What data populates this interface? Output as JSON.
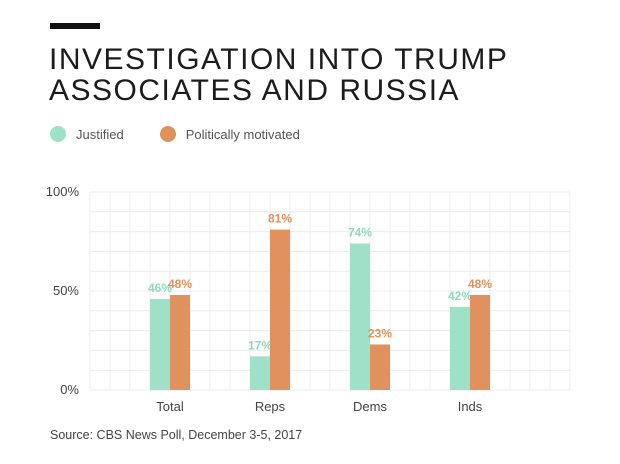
{
  "header": {
    "title": "INVESTIGATION INTO TRUMP ASSOCIATES AND RUSSIA"
  },
  "legend": [
    {
      "label": "Justified",
      "color": "#9fe0c9"
    },
    {
      "label": "Politically motivated",
      "color": "#e0915d"
    }
  ],
  "chart_data": {
    "type": "bar",
    "categories": [
      "Total",
      "Reps",
      "Dems",
      "Inds"
    ],
    "series": [
      {
        "name": "Justified",
        "values": [
          46,
          17,
          74,
          42
        ],
        "labels": [
          "46%",
          "17%",
          "74%",
          "42%"
        ],
        "color": "#9fe0c9",
        "label_color": "#8fd9bf"
      },
      {
        "name": "Politically motivated",
        "values": [
          48,
          81,
          23,
          48
        ],
        "labels": [
          "48%",
          "81%",
          "23%",
          "48%"
        ],
        "color": "#e0915d",
        "label_color": "#e0915d"
      }
    ],
    "ylim": [
      0,
      100
    ],
    "yticks": [
      {
        "value": 100,
        "label": "100%"
      },
      {
        "value": 50,
        "label": "50%"
      },
      {
        "value": 0,
        "label": "0%"
      }
    ],
    "grid": true,
    "legend_position": "top-left"
  },
  "footer": {
    "source": "Source: CBS News Poll, December 3-5, 2017"
  }
}
